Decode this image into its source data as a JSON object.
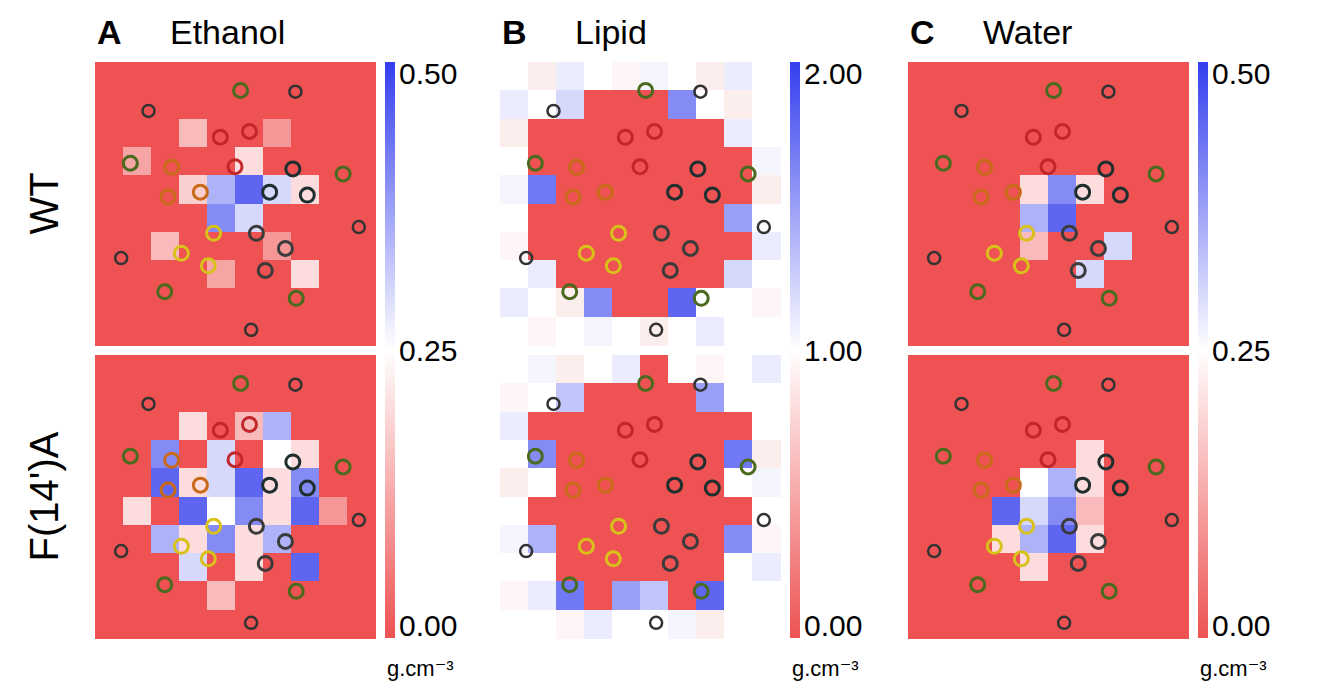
{
  "chart_data": {
    "type": "heatmap",
    "rows": [
      "WT",
      "F(14')A"
    ],
    "panels": [
      {
        "letter": "A",
        "title": "Ethanol",
        "colorbar": {
          "range": [
            0,
            0.5
          ],
          "ticks": [
            {
              "value": 0,
              "label": "0.00"
            },
            {
              "value": 0.25,
              "label": "0.25"
            },
            {
              "value": 0.5,
              "label": "0.50"
            }
          ],
          "unit": "g.cm⁻³"
        },
        "cells": [
          [
            [
              0,
              0,
              0,
              0,
              0,
              0,
              0,
              0,
              0,
              0
            ],
            [
              0,
              0,
              0,
              0,
              0,
              0,
              0,
              0,
              0,
              0
            ],
            [
              0,
              0,
              0,
              0.15,
              0,
              0,
              0.1,
              0,
              0,
              0
            ],
            [
              0,
              0.12,
              0,
              0,
              0,
              0.2,
              0,
              0,
              0,
              0
            ],
            [
              0,
              0,
              0,
              0.18,
              0.35,
              0.45,
              0.3,
              0.2,
              0,
              0
            ],
            [
              0,
              0,
              0,
              0,
              0.4,
              0.3,
              0,
              0,
              0,
              0
            ],
            [
              0,
              0,
              0.15,
              0,
              0,
              0,
              0.1,
              0,
              0,
              0
            ],
            [
              0,
              0,
              0,
              0,
              0.12,
              0,
              0,
              0.2,
              0,
              0
            ],
            [
              0,
              0,
              0,
              0,
              0,
              0,
              0,
              0,
              0,
              0
            ],
            [
              0,
              0,
              0,
              0,
              0,
              0,
              0,
              0,
              0,
              0
            ]
          ],
          [
            [
              0,
              0,
              0,
              0,
              0,
              0,
              0,
              0,
              0,
              0
            ],
            [
              0,
              0,
              0,
              0,
              0,
              0,
              0,
              0,
              0,
              0
            ],
            [
              0,
              0,
              0,
              0.2,
              0,
              0.15,
              0.35,
              0,
              0,
              0
            ],
            [
              0,
              0,
              0.4,
              0,
              0.3,
              0,
              0.25,
              0.2,
              0,
              0
            ],
            [
              0,
              0,
              0.45,
              0.2,
              0.3,
              0.45,
              0.2,
              0.4,
              0,
              0
            ],
            [
              0,
              0.2,
              0,
              0.45,
              0.25,
              0.4,
              0.2,
              0.45,
              0.1,
              0
            ],
            [
              0,
              0,
              0.35,
              0.2,
              0.4,
              0.2,
              0.35,
              0,
              0,
              0
            ],
            [
              0,
              0,
              0,
              0.3,
              0,
              0.2,
              0,
              0.45,
              0,
              0
            ],
            [
              0,
              0,
              0,
              0,
              0.15,
              0,
              0,
              0,
              0,
              0
            ],
            [
              0,
              0,
              0,
              0,
              0,
              0,
              0,
              0,
              0,
              0
            ]
          ]
        ]
      },
      {
        "letter": "B",
        "title": "Lipid",
        "colorbar": {
          "range": [
            0,
            2
          ],
          "ticks": [
            {
              "value": 0,
              "label": "0.00"
            },
            {
              "value": 1,
              "label": "1.00"
            },
            {
              "value": 2,
              "label": "2.00"
            }
          ],
          "unit": "g.cm⁻³"
        },
        "cells": [
          [
            [
              1,
              0.9,
              1.1,
              1,
              0.95,
              1.05,
              1,
              0.9,
              1.1,
              1
            ],
            [
              1.1,
              1,
              1.2,
              0,
              0,
              0,
              1.6,
              1,
              0.9,
              1
            ],
            [
              0.9,
              0,
              0,
              0,
              0,
              0,
              0,
              0,
              1.1,
              1
            ],
            [
              1,
              0,
              0,
              0,
              0,
              0,
              0,
              0,
              0,
              1.05
            ],
            [
              1.05,
              1.7,
              0,
              0,
              0,
              0,
              0,
              0,
              0,
              0.9
            ],
            [
              1,
              0,
              0,
              0,
              0,
              0,
              0,
              0,
              1.5,
              1
            ],
            [
              0.95,
              0,
              0,
              0,
              0,
              0,
              0,
              0,
              0,
              1.1
            ],
            [
              1,
              1.1,
              0,
              0,
              0,
              0,
              0,
              0,
              1.2,
              1
            ],
            [
              1.1,
              1,
              0.9,
              1.6,
              0,
              0,
              1.8,
              1,
              1,
              0.95
            ],
            [
              1,
              0.95,
              1,
              1.05,
              1,
              0.9,
              1,
              1.1,
              1,
              1
            ]
          ],
          [
            [
              1,
              1.05,
              0.9,
              1,
              1.1,
              0,
              1,
              0.95,
              1,
              1.1
            ],
            [
              0.95,
              1,
              1.3,
              0,
              0,
              0,
              0,
              1.5,
              1,
              1
            ],
            [
              1.1,
              0,
              0,
              0,
              0,
              0,
              0,
              0,
              0,
              1
            ],
            [
              1,
              1.6,
              0,
              0,
              0,
              0,
              0,
              0,
              1.7,
              0.9
            ],
            [
              0.9,
              1,
              0,
              0,
              0,
              0,
              0,
              0,
              1,
              1.05
            ],
            [
              1,
              0,
              0,
              0,
              0,
              0,
              0,
              0,
              0,
              1
            ],
            [
              1.05,
              1.4,
              0,
              0,
              0,
              0,
              0,
              0,
              1.6,
              0.95
            ],
            [
              1,
              1,
              0,
              0,
              0,
              0,
              0,
              0,
              1,
              1.1
            ],
            [
              0.95,
              1.1,
              1.7,
              0,
              1.5,
              1.3,
              0,
              1.8,
              1,
              1
            ],
            [
              1,
              1,
              0.95,
              1.1,
              1,
              1,
              1.05,
              0.9,
              1,
              1
            ]
          ]
        ]
      },
      {
        "letter": "C",
        "title": "Water",
        "colorbar": {
          "range": [
            0,
            0.5
          ],
          "ticks": [
            {
              "value": 0,
              "label": "0.00"
            },
            {
              "value": 0.25,
              "label": "0.25"
            },
            {
              "value": 0.5,
              "label": "0.50"
            }
          ],
          "unit": "g.cm⁻³"
        },
        "cells": [
          [
            [
              0,
              0,
              0,
              0,
              0,
              0,
              0,
              0,
              0,
              0
            ],
            [
              0,
              0,
              0,
              0,
              0,
              0,
              0,
              0,
              0,
              0
            ],
            [
              0,
              0,
              0,
              0,
              0,
              0,
              0,
              0,
              0,
              0
            ],
            [
              0,
              0,
              0,
              0,
              0,
              0,
              0,
              0,
              0,
              0
            ],
            [
              0,
              0,
              0,
              0,
              0.2,
              0.4,
              0.2,
              0,
              0,
              0
            ],
            [
              0,
              0,
              0,
              0,
              0.35,
              0.45,
              0,
              0,
              0,
              0
            ],
            [
              0,
              0,
              0,
              0,
              0.15,
              0,
              0,
              0.3,
              0,
              0
            ],
            [
              0,
              0,
              0,
              0,
              0,
              0,
              0.3,
              0,
              0,
              0
            ],
            [
              0,
              0,
              0,
              0,
              0,
              0,
              0,
              0,
              0,
              0
            ],
            [
              0,
              0,
              0,
              0,
              0,
              0,
              0,
              0,
              0,
              0
            ]
          ],
          [
            [
              0,
              0,
              0,
              0,
              0,
              0,
              0,
              0,
              0,
              0
            ],
            [
              0,
              0,
              0,
              0,
              0,
              0,
              0,
              0,
              0,
              0
            ],
            [
              0,
              0,
              0,
              0,
              0,
              0,
              0,
              0,
              0,
              0
            ],
            [
              0,
              0,
              0,
              0,
              0,
              0,
              0.2,
              0,
              0,
              0
            ],
            [
              0,
              0,
              0,
              0,
              0.25,
              0.35,
              0.2,
              0,
              0,
              0
            ],
            [
              0,
              0,
              0,
              0.45,
              0.3,
              0.4,
              0.15,
              0,
              0,
              0
            ],
            [
              0,
              0,
              0,
              0.2,
              0.35,
              0.45,
              0.2,
              0,
              0,
              0
            ],
            [
              0,
              0,
              0,
              0,
              0.2,
              0,
              0,
              0,
              0,
              0
            ],
            [
              0,
              0,
              0,
              0,
              0,
              0,
              0,
              0,
              0,
              0
            ],
            [
              0,
              0,
              0,
              0,
              0,
              0,
              0,
              0,
              0,
              0
            ]
          ]
        ]
      }
    ]
  }
}
